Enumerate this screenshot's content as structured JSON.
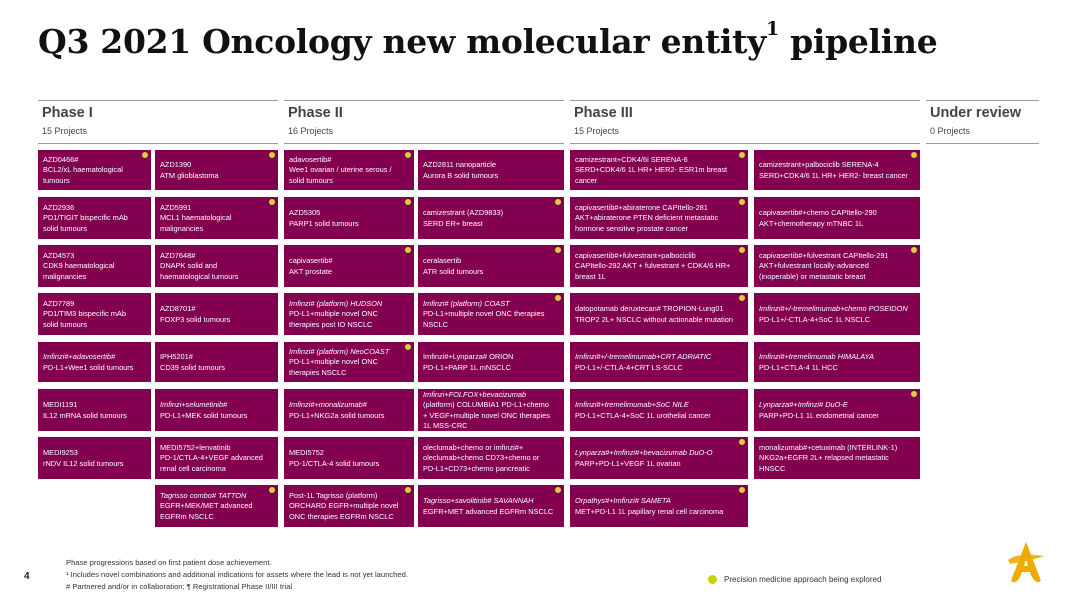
{
  "title": {
    "main": "Q3 2021 Oncology new molecular entity",
    "sup": "1",
    "tail": " pipeline"
  },
  "phases": [
    {
      "name": "Phase I",
      "count": "15 Projects"
    },
    {
      "name": "Phase II",
      "count": "16 Projects"
    },
    {
      "name": "Phase III",
      "count": "15 Projects"
    },
    {
      "name": "Under review",
      "count": "0 Projects"
    }
  ],
  "cards": [
    [
      "AZD0466#",
      "BCL2/xL haematological tumours"
    ],
    [
      "AZD1390",
      "ATM glioblastoma"
    ],
    [
      "adavosertib#",
      "Wee1 ovarian / uterine serous / solid tumours"
    ],
    [
      "AZD2811 nanoparticle",
      "Aurora B solid tumours"
    ],
    [
      "camizestrant+CDK4/6i SERENA-6",
      "SERD+CDK4/6 1L HR+ HER2- ESR1m breast cancer"
    ],
    [
      "camizestrant+palbociclib SERENA-4",
      "SERD+CDK4/6 1L HR+ HER2- breast cancer"
    ],
    [
      "AZD2936",
      "PD1/TIGIT bispecific mAb solid tumours"
    ],
    [
      "AZD5991",
      "MCL1 haematological malignancies"
    ],
    [
      "AZD5305",
      "PARP1 solid tumours"
    ],
    [
      "camizestrant (AZD9833)",
      "SERD ER+ breast"
    ],
    [
      "capivasertib#+abiraterone CAPItello-281",
      "AKT+abiraterone PTEN deficient metastatic hormone sensitive prostate cancer"
    ],
    [
      "capivasertib#+chemo CAPItello-290",
      "AKT+chemotherapy mTNBC 1L"
    ],
    [
      "AZD4573",
      "CDK9 haematological malignancies"
    ],
    [
      "AZD7648#",
      "DNAPK solid and haematological tumours"
    ],
    [
      "capivasertib#",
      "AKT prostate"
    ],
    [
      "ceralasertib",
      "ATR solid tumours"
    ],
    [
      "capivasertib#+fulvestrant+palbociclib",
      "CAPItello-292 AKT + fulvestrant + CDK4/6 HR+ breast 1L"
    ],
    [
      "capivasertib#+fulvestrant CAPItello-291",
      "AKT+fulvestrant locally-advanced (inoperable) or metastatic breast"
    ],
    [
      "AZD7789",
      "PD1/TIM3 bispecific mAb solid tumours"
    ],
    [
      "AZD8701#",
      "FOXP3 solid tumours"
    ],
    [
      "Imfinzi# (platform) HUDSON",
      "PD-L1+multiple novel ONC therapies post IO NSCLC"
    ],
    [
      "Imfinzi# (platform) COAST",
      "PD-L1+multiple novel ONC therapies NSCLC"
    ],
    [
      "datopotamab deruxtecan# TROPION-Lung01",
      "TROP2 2L+ NSCLC without actionable mutation"
    ],
    [
      "Imfinzi#+/-tremelimumab+chemo POSEIDON",
      "PD-L1+/-CTLA-4+SoC 1L NSCLC"
    ],
    [
      "Imfinzi#+adavosertib#",
      "PD-L1+Wee1 solid tumours"
    ],
    [
      "IPH5201#",
      "CD39 solid tumours"
    ],
    [
      "Imfinzi# (platform) NeoCOAST",
      "PD-L1+multiple novel ONC therapies NSCLC"
    ],
    [
      "Imfinzi#+Lynparza# ORION",
      "PD-L1+PARP 1L mNSCLC"
    ],
    [
      "Imfinzi#+/-tremelimumab+CRT ADRIATIC",
      "PD-L1+/-CTLA-4+CRT LS-SCLC"
    ],
    [
      "Imfinzi#+tremelimumab HIMALAYA",
      "PD-L1+CTLA-4 1L HCC"
    ],
    [
      "MEDI1191",
      "IL12 mRNA solid tumours"
    ],
    [
      "Imfinzi+selumetinib#",
      "PD-L1+MEK solid tumours"
    ],
    [
      "Imfinzi#+monalizumab#",
      "PD-L1+NKG2a solid tumours"
    ],
    [
      "Imfinzi+FOLFOX+bevacizumab",
      "(platform) COLUMBIA1 PD-L1+chemo + VEGF+multiple novel ONC therapies 1L MSS-CRC"
    ],
    [
      "Imfinzi#+tremelimumab+SoC NILE",
      "PD-L1+CTLA-4+SoC 1L urothelial cancer"
    ],
    [
      "Lynparza#+Imfinzi# DuO-E",
      "PARP+PD-L1 1L endometrial cancer"
    ],
    [
      "MEDI9253",
      "rNDV IL12 solid tumours"
    ],
    [
      "MEDI5752+lenvatinib",
      "PD-1/CTLA-4+VEGF advanced renal cell carcinoma"
    ],
    [
      "MEDI5752",
      "PD-1/CTLA-4 solid tumours"
    ],
    [
      "oleclumab+chemo or imfinzi#+",
      "oleclumab+chemo CD73+chemo or PD-L1+CD73+chemo pancreatic"
    ],
    [
      "Lynparza#+Imfinzi#+bevacizumab DuO-O",
      "PARP+PD-L1+VEGF 1L ovarian"
    ],
    [
      "monalizumab#+cetuximab (INTERLINK-1)",
      "NKG2a+EGFR 2L+ relapsed metastatic HNSCC"
    ],
    [
      "Tagrisso combo# TATTON",
      "EGFR+MEK/MET advanced EGFRm NSCLC"
    ],
    [
      "Post-1L Tagrisso (platform)",
      "ORCHARD EGFR+multiple novel ONC therapies EGFRm NSCLC"
    ],
    [
      "Tagrisso+savolitinib# SAVANNAH",
      "EGFR+MET advanced EGFRm NSCLC"
    ],
    [
      "Orpathys#+Imfinzi# SAMETA",
      "MET+PD-L1 1L papillary renal cell carcinoma"
    ]
  ],
  "footnotes": [
    "Phase progressions based on first patient dose achievement.",
    "¹ Includes novel combinations and additional indications for assets where the lead is not yet launched.",
    "# Partnered and/or in collaboration; ¶ Registrational Phase II/III trial"
  ],
  "page_number": "4",
  "legend_text": "Precision medicine approach being explored",
  "colors": {
    "card": "#830051",
    "dot": "#d4d23a",
    "legend_dot": "#c8d400",
    "logo": "#f0ab00"
  },
  "logo_icon": "astrazeneca-logo-icon"
}
